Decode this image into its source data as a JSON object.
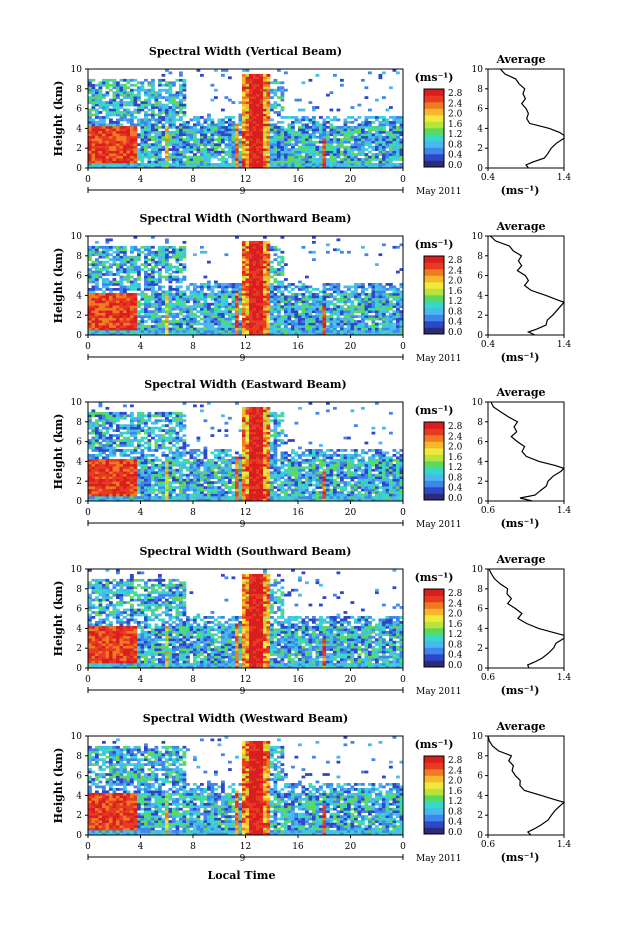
{
  "colorbar": {
    "unit_label": "(ms⁻¹)",
    "ticks": [
      "2.8",
      "2.4",
      "2.0",
      "1.6",
      "1.2",
      "0.8",
      "0.4",
      "0.0"
    ],
    "colors": [
      "#2b2b7a",
      "#2e46c8",
      "#3f86ea",
      "#48b8f0",
      "#38d8c8",
      "#5cd85a",
      "#b8e43a",
      "#f2e83a",
      "#f6b82a",
      "#f07a22",
      "#e83a22",
      "#d81e1e"
    ]
  },
  "x_axis": {
    "ticks": [
      "0",
      "4",
      "8",
      "12",
      "16",
      "20",
      "0"
    ],
    "date_label": "9",
    "date_suffix": "May 2011",
    "title": "Local Time"
  },
  "y_axis": {
    "title": "Height (km)",
    "ticks": [
      "0",
      "2",
      "4",
      "6",
      "8",
      "10"
    ]
  },
  "avg_panel": {
    "title": "Average",
    "xlabel": "(ms⁻¹)"
  },
  "chart_data": [
    {
      "type": "heatmap",
      "title": "Spectral Width (Vertical Beam)",
      "xlabel": "",
      "ylabel": "Height (km)",
      "xlim": [
        0,
        24
      ],
      "ylim": [
        0,
        10
      ],
      "clim": [
        0.0,
        3.0
      ],
      "avg_xticks": [
        "0.4",
        "1.4"
      ],
      "avg_xlim": [
        0.4,
        1.4
      ],
      "profile": {
        "height": [
          0,
          0.3,
          0.6,
          1,
          1.5,
          2,
          2.5,
          3,
          3.3,
          3.6,
          4,
          4.5,
          5,
          5.5,
          6,
          6.5,
          7,
          7.5,
          8,
          8.5,
          9,
          9.5,
          10
        ],
        "width": [
          0.95,
          0.9,
          1.0,
          1.15,
          1.2,
          1.25,
          1.3,
          1.4,
          1.45,
          1.35,
          1.2,
          0.95,
          0.92,
          0.95,
          0.9,
          0.85,
          0.9,
          0.85,
          0.88,
          0.8,
          0.75,
          0.62,
          0.55
        ]
      }
    },
    {
      "type": "heatmap",
      "title": "Spectral Width (Northward Beam)",
      "xlabel": "",
      "ylabel": "Height (km)",
      "xlim": [
        0,
        24
      ],
      "ylim": [
        0,
        10
      ],
      "clim": [
        0.0,
        3.0
      ],
      "avg_xticks": [
        "0.4",
        "1.4"
      ],
      "avg_xlim": [
        0.4,
        1.4
      ],
      "profile": {
        "height": [
          0,
          0.3,
          0.6,
          1,
          1.5,
          2,
          2.5,
          3,
          3.3,
          3.6,
          4,
          4.5,
          5,
          5.5,
          6,
          6.5,
          7,
          7.5,
          8,
          8.5,
          9,
          9.5,
          10
        ],
        "width": [
          1.0,
          0.95,
          1.05,
          1.15,
          1.2,
          1.25,
          1.32,
          1.38,
          1.42,
          1.3,
          1.15,
          0.95,
          0.9,
          0.92,
          0.88,
          0.8,
          0.85,
          0.82,
          0.86,
          0.75,
          0.68,
          0.5,
          0.45
        ]
      }
    },
    {
      "type": "heatmap",
      "title": "Spectral Width (Eastward Beam)",
      "xlabel": "",
      "ylabel": "Height (km)",
      "xlim": [
        0,
        24
      ],
      "ylim": [
        0,
        10
      ],
      "clim": [
        0.0,
        3.0
      ],
      "avg_xticks": [
        "0.6",
        "1.4"
      ],
      "avg_xlim": [
        0.6,
        1.4
      ],
      "profile": {
        "height": [
          0,
          0.3,
          0.6,
          1,
          1.5,
          2,
          2.5,
          3,
          3.3,
          3.6,
          4,
          4.5,
          5,
          5.5,
          6,
          6.5,
          7,
          7.5,
          8,
          8.5,
          9,
          9.5,
          10
        ],
        "width": [
          1.05,
          0.95,
          1.1,
          1.15,
          1.2,
          1.25,
          1.3,
          1.38,
          1.4,
          1.3,
          1.15,
          1.0,
          0.95,
          0.98,
          0.92,
          0.85,
          0.9,
          0.88,
          0.92,
          0.8,
          0.72,
          0.65,
          0.62
        ]
      }
    },
    {
      "type": "heatmap",
      "title": "Spectral Width (Southward Beam)",
      "xlabel": "",
      "ylabel": "Height (km)",
      "xlim": [
        0,
        24
      ],
      "ylim": [
        0,
        10
      ],
      "clim": [
        0.0,
        3.0
      ],
      "avg_xticks": [
        "0.6",
        "1.4"
      ],
      "avg_xlim": [
        0.6,
        1.4
      ],
      "profile": {
        "height": [
          0,
          0.3,
          0.6,
          1,
          1.5,
          2,
          2.5,
          3,
          3.3,
          3.6,
          4,
          4.5,
          5,
          5.5,
          6,
          6.5,
          7,
          7.5,
          8,
          8.5,
          9,
          9.5,
          10
        ],
        "width": [
          1.05,
          1.0,
          1.1,
          1.18,
          1.22,
          1.28,
          1.33,
          1.4,
          1.42,
          1.3,
          1.15,
          1.0,
          0.92,
          0.95,
          0.9,
          0.82,
          0.86,
          0.8,
          0.82,
          0.72,
          0.68,
          0.63,
          0.62
        ]
      }
    },
    {
      "type": "heatmap",
      "title": "Spectral Width (Westward Beam)",
      "xlabel": "Local Time",
      "ylabel": "Height (km)",
      "xlim": [
        0,
        24
      ],
      "ylim": [
        0,
        10
      ],
      "clim": [
        0.0,
        3.0
      ],
      "avg_xticks": [
        "0.6",
        "1.4"
      ],
      "avg_xlim": [
        0.6,
        1.4
      ],
      "profile": {
        "height": [
          0,
          0.3,
          0.6,
          1,
          1.5,
          2,
          2.5,
          3,
          3.3,
          3.6,
          4,
          4.5,
          5,
          5.5,
          6,
          6.5,
          7,
          7.5,
          8,
          8.5,
          9,
          9.5,
          10
        ],
        "width": [
          1.05,
          1.0,
          1.08,
          1.15,
          1.22,
          1.28,
          1.32,
          1.38,
          1.4,
          1.3,
          1.15,
          1.0,
          0.92,
          0.95,
          0.9,
          0.85,
          0.88,
          0.82,
          0.85,
          0.72,
          0.65,
          0.62,
          0.6
        ]
      }
    }
  ]
}
